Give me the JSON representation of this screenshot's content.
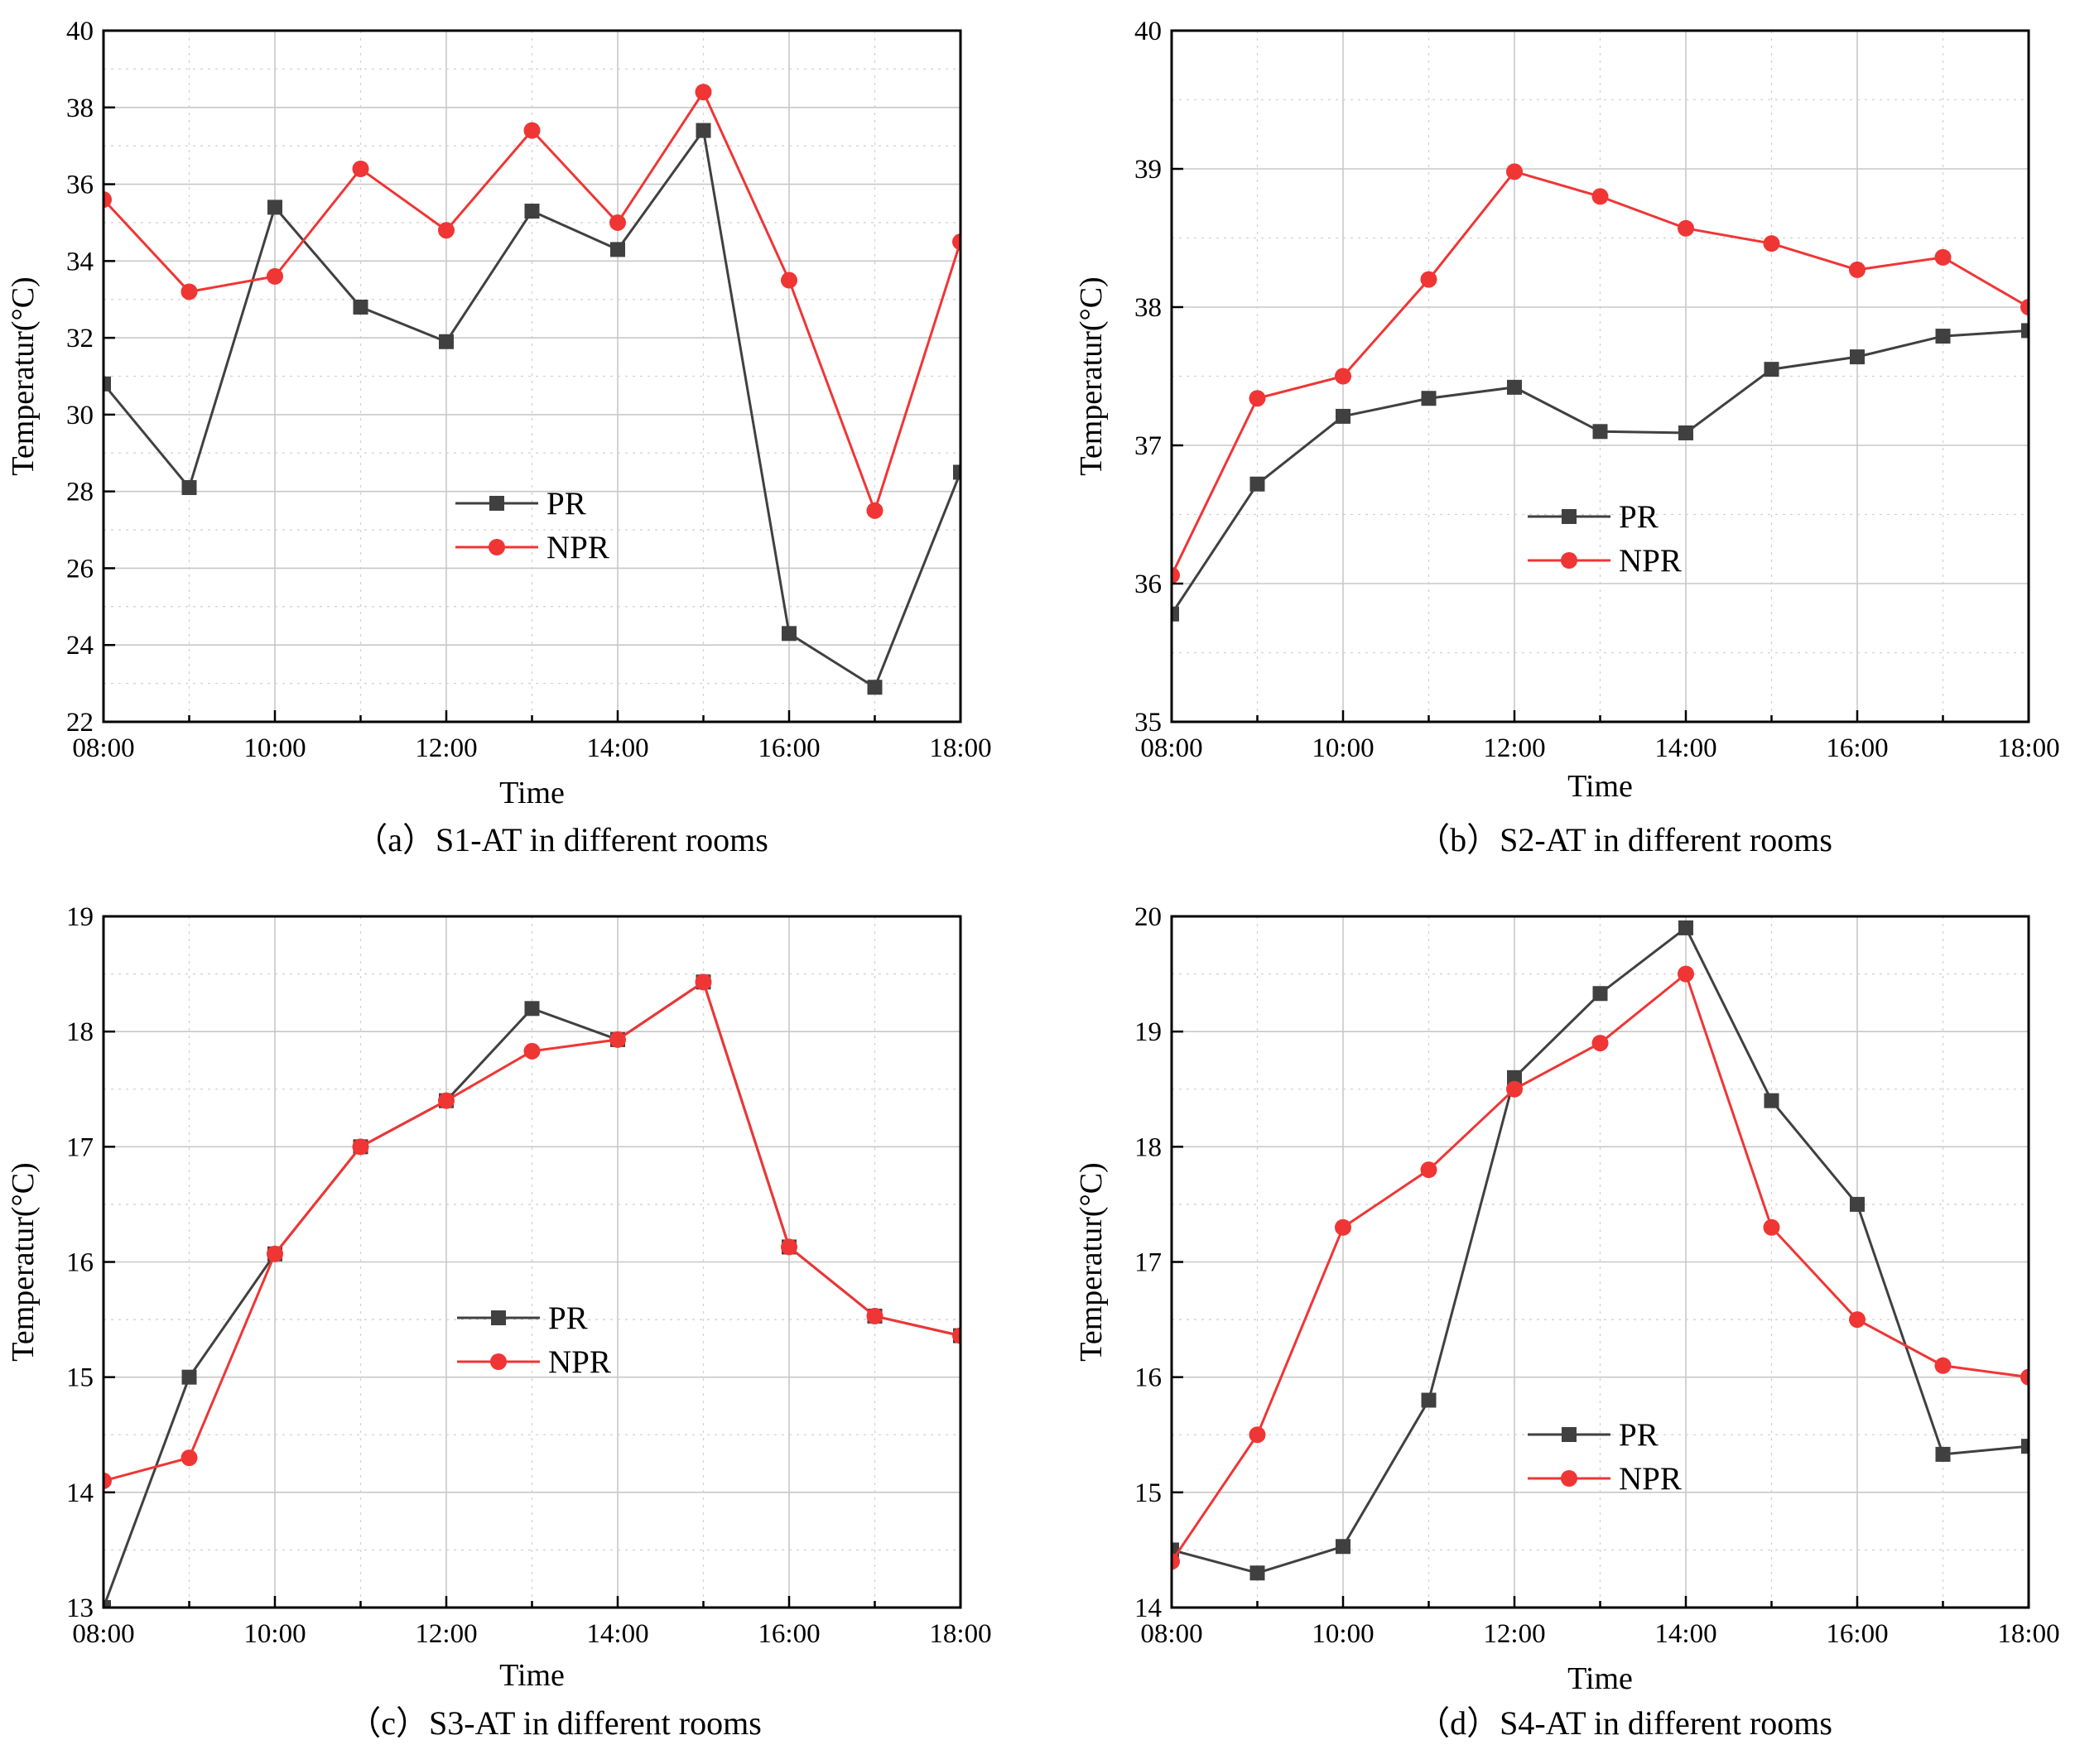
{
  "chart_data": [
    {
      "type": "line",
      "caption": "（a）S1-AT in different rooms",
      "xlabel": "Time",
      "ylabel": "Temperatur(°C)",
      "x": [
        "08:00",
        "09:00",
        "10:00",
        "11:00",
        "12:00",
        "13:00",
        "14:00",
        "15:00",
        "16:00",
        "17:00",
        "18:00"
      ],
      "x_tick_labels": [
        "08:00",
        "10:00",
        "12:00",
        "14:00",
        "16:00",
        "18:00"
      ],
      "ylim": [
        22,
        40
      ],
      "y_ticks": [
        22,
        24,
        26,
        28,
        30,
        32,
        34,
        36,
        38,
        40
      ],
      "grid": true,
      "legend": "center",
      "series": [
        {
          "name": "PR",
          "color": "#404040",
          "marker": "square",
          "values": [
            30.8,
            28.1,
            35.4,
            32.8,
            31.9,
            35.3,
            34.3,
            37.4,
            24.3,
            22.9,
            28.5
          ]
        },
        {
          "name": "NPR",
          "color": "#f03535",
          "marker": "circle",
          "values": [
            35.6,
            33.2,
            33.6,
            36.4,
            34.8,
            37.4,
            35.0,
            38.4,
            33.5,
            27.5,
            34.5
          ]
        }
      ]
    },
    {
      "type": "line",
      "caption": "（b）S2-AT in different rooms",
      "xlabel": "Time",
      "ylabel": "Temperatur(°C)",
      "x": [
        "08:00",
        "09:00",
        "10:00",
        "11:00",
        "12:00",
        "13:00",
        "14:00",
        "15:00",
        "16:00",
        "17:00",
        "18:00"
      ],
      "x_tick_labels": [
        "08:00",
        "10:00",
        "12:00",
        "14:00",
        "16:00",
        "18:00"
      ],
      "ylim": [
        35,
        40
      ],
      "y_ticks": [
        35,
        36,
        37,
        38,
        39,
        40
      ],
      "grid": true,
      "legend": "center-left",
      "series": [
        {
          "name": "PR",
          "color": "#404040",
          "marker": "square",
          "values": [
            35.78,
            36.72,
            37.21,
            37.34,
            37.42,
            37.1,
            37.09,
            37.55,
            37.64,
            37.79,
            37.83
          ]
        },
        {
          "name": "NPR",
          "color": "#f03535",
          "marker": "circle",
          "values": [
            36.06,
            37.34,
            37.5,
            38.2,
            38.98,
            38.8,
            38.57,
            38.46,
            38.27,
            38.36,
            38.0
          ]
        }
      ]
    },
    {
      "type": "line",
      "caption": "（c）S3-AT in different rooms",
      "xlabel": "Time",
      "ylabel": "Temperatur(°C)",
      "x": [
        "08:00",
        "09:00",
        "10:00",
        "11:00",
        "12:00",
        "13:00",
        "14:00",
        "15:00",
        "16:00",
        "17:00",
        "18:00"
      ],
      "x_tick_labels": [
        "08:00",
        "10:00",
        "12:00",
        "14:00",
        "16:00",
        "18:00"
      ],
      "ylim": [
        13,
        19
      ],
      "y_ticks": [
        13,
        14,
        15,
        16,
        17,
        18,
        19
      ],
      "grid": true,
      "legend": "center",
      "series": [
        {
          "name": "PR",
          "color": "#404040",
          "marker": "square",
          "values": [
            13.0,
            15.0,
            16.07,
            17.0,
            17.4,
            18.2,
            17.93,
            18.43,
            16.13,
            15.53,
            15.36
          ]
        },
        {
          "name": "NPR",
          "color": "#f03535",
          "marker": "circle",
          "values": [
            14.1,
            14.3,
            16.07,
            17.0,
            17.4,
            17.83,
            17.93,
            18.43,
            16.13,
            15.53,
            15.36
          ]
        }
      ]
    },
    {
      "type": "line",
      "caption": "（d）S4-AT in different rooms",
      "xlabel": "Time",
      "ylabel": "Temperatur(°C)",
      "x": [
        "08:00",
        "09:00",
        "10:00",
        "11:00",
        "12:00",
        "13:00",
        "14:00",
        "15:00",
        "16:00",
        "17:00",
        "18:00"
      ],
      "x_tick_labels": [
        "08:00",
        "10:00",
        "12:00",
        "14:00",
        "16:00",
        "18:00"
      ],
      "ylim": [
        14,
        20
      ],
      "y_ticks": [
        14,
        15,
        16,
        17,
        18,
        19,
        20
      ],
      "grid": true,
      "legend": "lower-center",
      "series": [
        {
          "name": "PR",
          "color": "#404040",
          "marker": "square",
          "values": [
            14.5,
            14.3,
            14.53,
            15.8,
            18.6,
            19.33,
            19.9,
            18.4,
            17.5,
            15.33,
            15.4
          ]
        },
        {
          "name": "NPR",
          "color": "#f03535",
          "marker": "circle",
          "values": [
            14.4,
            15.5,
            17.3,
            17.8,
            18.5,
            18.9,
            19.5,
            17.3,
            16.5,
            16.1,
            16.0
          ]
        }
      ]
    }
  ]
}
